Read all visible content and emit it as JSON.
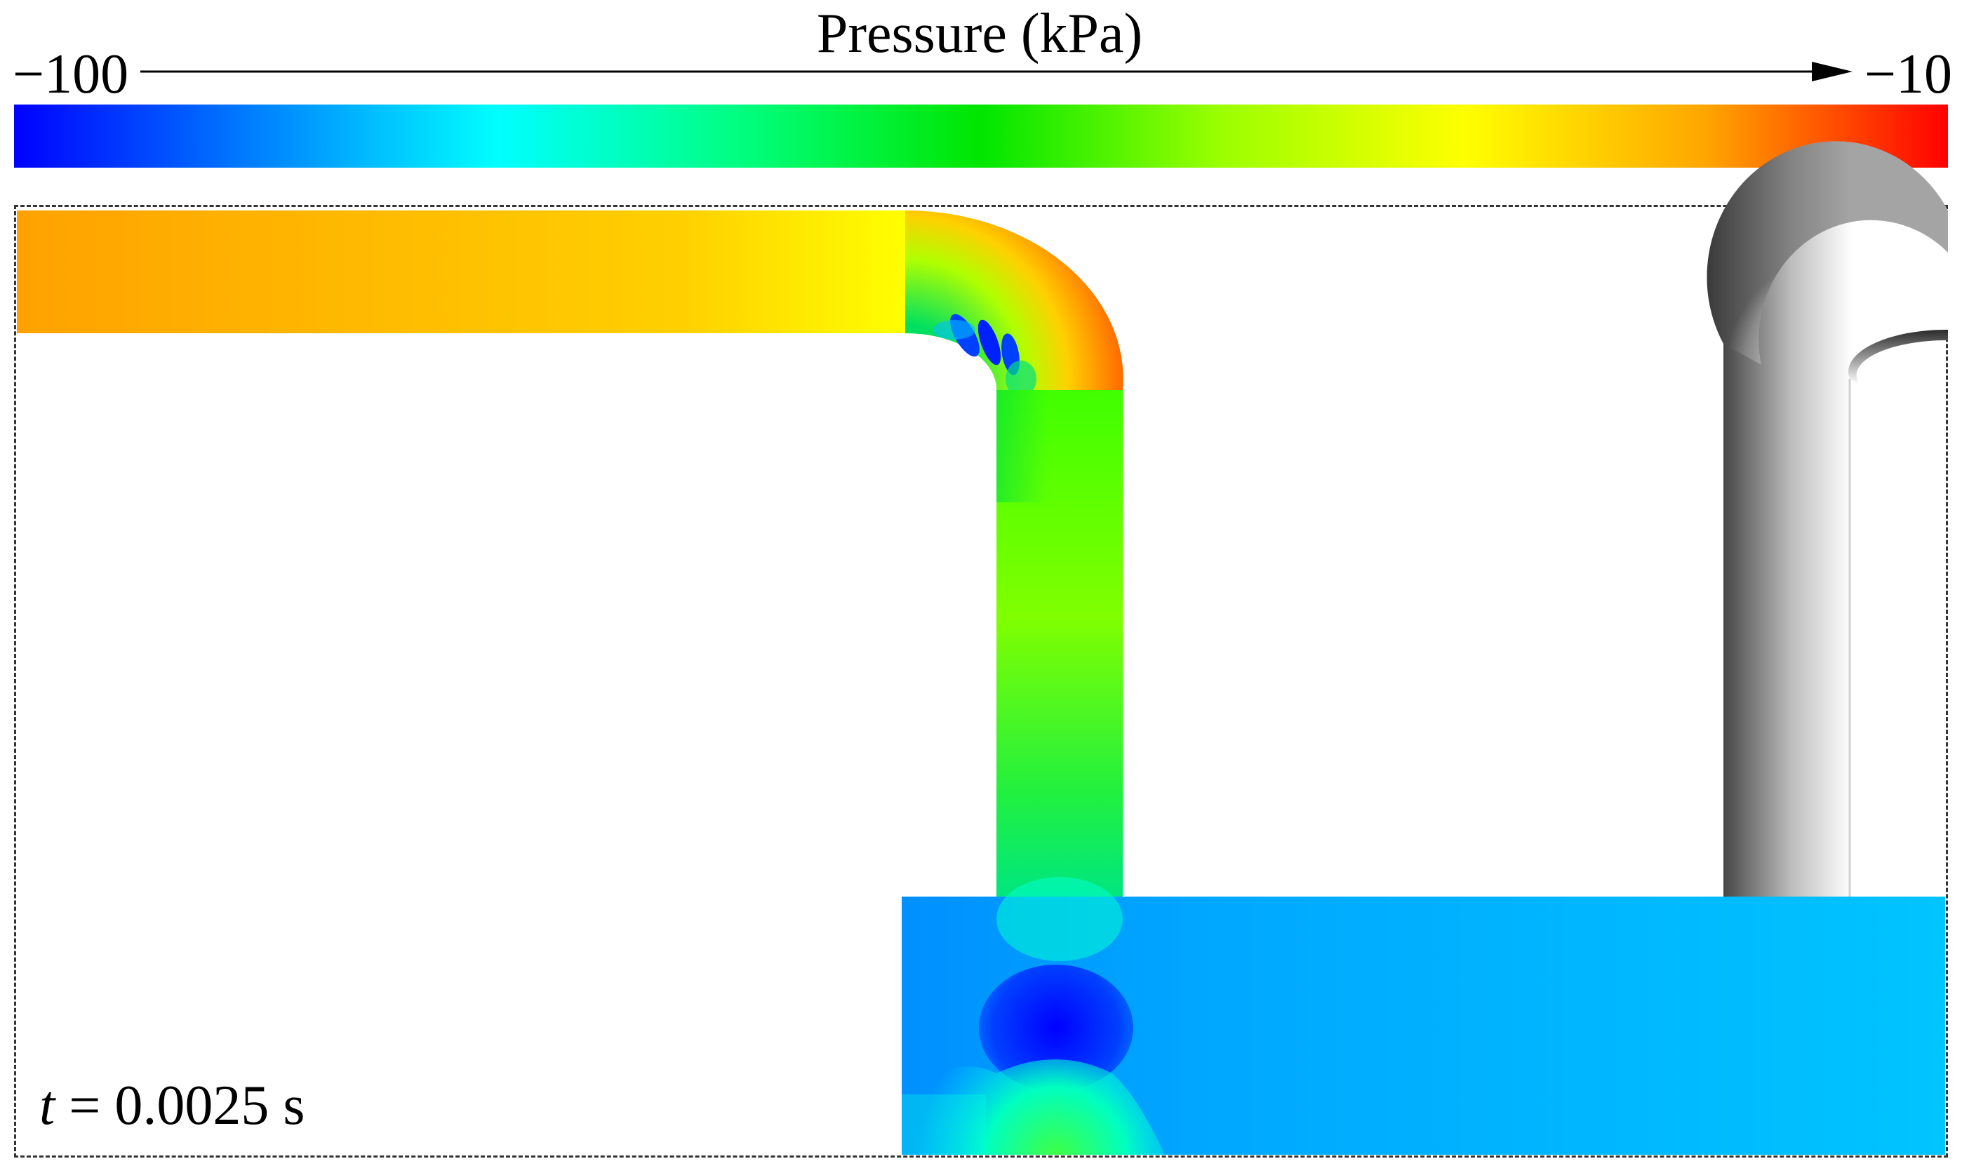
{
  "colorbar": {
    "title": "Pressure (kPa)",
    "min_label": "−100",
    "max_label": "−10",
    "min": -100,
    "max": -10,
    "stops": [
      "#0000ff",
      "#0080ff",
      "#00ffff",
      "#00ff80",
      "#00e600",
      "#9cff00",
      "#ffff00",
      "#ffa500",
      "#ff0000"
    ]
  },
  "time": {
    "var": "t",
    "eq": " = ",
    "value": "0.0025 s"
  },
  "field_colors": {
    "inlet_start": "#ffa200",
    "inlet_end": "#ffff00",
    "bend_outer": "#ff6a00",
    "vertical_top": "#00e040",
    "vertical_bottom": "#9cff00",
    "tank": "#00bfff",
    "tank_left": "#0090ff",
    "vortex_core": "#0000ff",
    "jet": "#00ffc8"
  }
}
